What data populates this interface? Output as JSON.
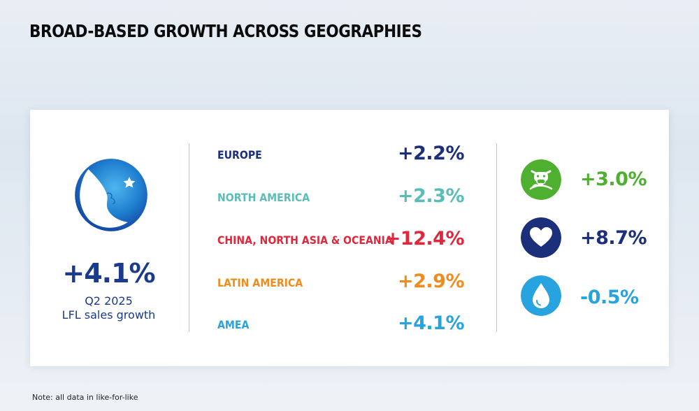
{
  "title": "BROAD-BASED GROWTH ACROSS GEOGRAPHIES",
  "summary": {
    "value": "+4.1%",
    "period": "Q2 2025",
    "label": "LFL sales growth"
  },
  "regions": [
    {
      "name": "EUROPE",
      "value": "+2.2%",
      "color": "#1b2f7a"
    },
    {
      "name": "NORTH AMERICA",
      "value": "+2.3%",
      "color": "#5bbdb8"
    },
    {
      "name": "CHINA, NORTH ASIA & OCEANIA",
      "value": "+12.4%",
      "color": "#e0283c"
    },
    {
      "name": "LATIN AMERICA",
      "value": "+2.9%",
      "color": "#f08c1e"
    },
    {
      "name": "AMEA",
      "value": "+4.1%",
      "color": "#27a3df"
    }
  ],
  "categories": [
    {
      "icon": "dairy-cow-icon",
      "value": "+3.0%",
      "color": "#4fb030"
    },
    {
      "icon": "heart-hands-icon",
      "value": "+8.7%",
      "color": "#1b2f7a"
    },
    {
      "icon": "water-drop-icon",
      "value": "-0.5%",
      "color": "#27a3df"
    }
  ],
  "note": "Note: all data in like-for-like"
}
